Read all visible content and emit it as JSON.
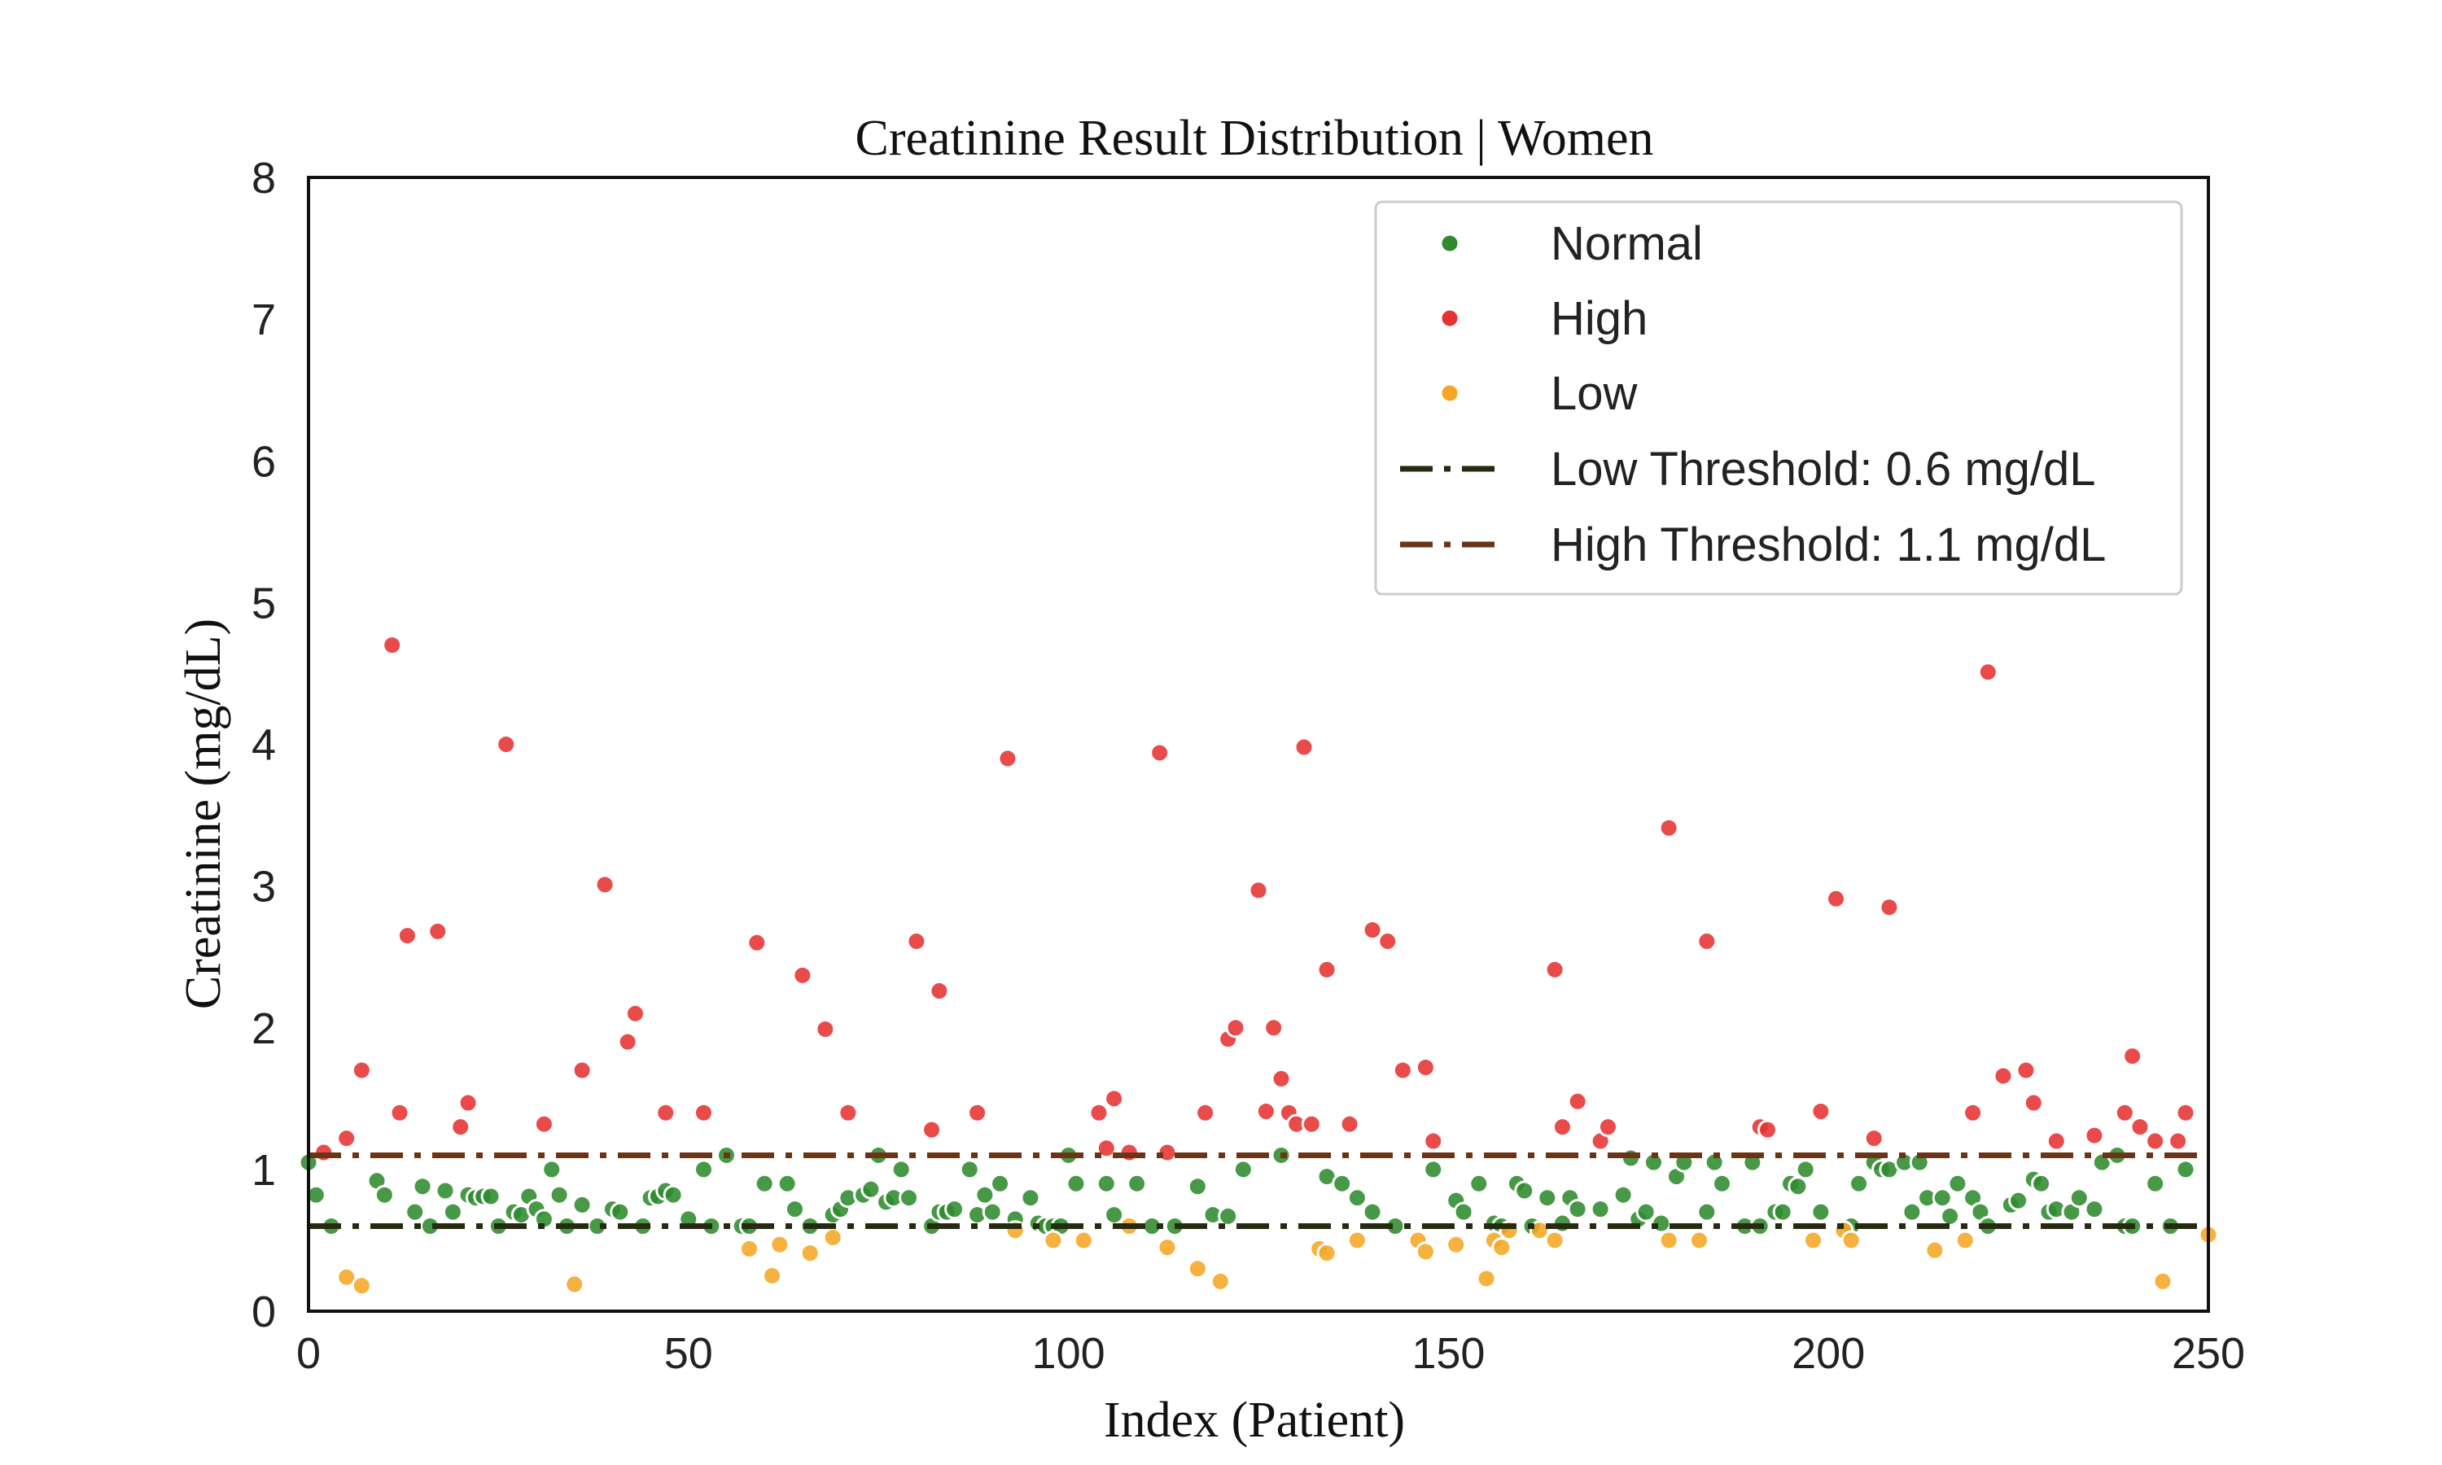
{
  "chart_data": {
    "type": "scatter",
    "title": "Creatinine Result Distribution | Women",
    "xlabel": "Index (Patient)",
    "ylabel": "Creatinine (mg/dL)",
    "xlim": [
      0,
      250
    ],
    "ylim": [
      0,
      8
    ],
    "xticks": [
      0,
      50,
      100,
      150,
      200,
      250
    ],
    "yticks": [
      0,
      1,
      2,
      3,
      4,
      5,
      6,
      7,
      8
    ],
    "grid": false,
    "legend": "top-right",
    "series": [
      {
        "name": "Normal",
        "color": "#2e8b2e",
        "x": [
          0,
          1,
          3,
          9,
          10,
          14,
          15,
          16,
          18,
          19,
          21,
          22,
          23,
          24,
          25,
          27,
          28,
          29,
          30,
          31,
          32,
          33,
          34,
          36,
          38,
          40,
          41,
          44,
          45,
          46,
          47,
          48,
          50,
          52,
          53,
          55,
          57,
          58,
          60,
          63,
          64,
          66,
          69,
          70,
          71,
          73,
          74,
          75,
          76,
          77,
          78,
          79,
          82,
          83,
          84,
          85,
          87,
          88,
          89,
          90,
          91,
          93,
          95,
          96,
          97,
          98,
          99,
          100,
          101,
          105,
          106,
          109,
          111,
          114,
          117,
          119,
          121,
          123,
          128,
          134,
          136,
          138,
          140,
          143,
          148,
          151,
          152,
          154,
          156,
          157,
          159,
          160,
          161,
          163,
          165,
          166,
          167,
          170,
          173,
          174,
          175,
          176,
          177,
          178,
          180,
          181,
          184,
          185,
          186,
          189,
          190,
          191,
          193,
          194,
          195,
          196,
          197,
          199,
          203,
          204,
          206,
          207,
          208,
          210,
          211,
          212,
          213,
          215,
          216,
          217,
          219,
          220,
          221,
          224,
          225,
          227,
          228,
          229,
          230,
          232,
          233,
          235,
          236,
          238,
          239,
          240,
          243,
          245,
          247
        ],
        "y": [
          1.05,
          0.82,
          0.6,
          0.92,
          0.82,
          0.7,
          0.88,
          0.6,
          0.85,
          0.7,
          0.82,
          0.8,
          0.81,
          0.81,
          0.6,
          0.7,
          0.68,
          0.81,
          0.72,
          0.65,
          1.0,
          0.82,
          0.6,
          0.75,
          0.6,
          0.72,
          0.7,
          0.6,
          0.8,
          0.81,
          0.85,
          0.82,
          0.65,
          1.0,
          0.6,
          1.1,
          0.6,
          0.6,
          0.9,
          0.9,
          0.72,
          0.6,
          0.68,
          0.72,
          0.8,
          0.82,
          0.86,
          1.1,
          0.77,
          0.8,
          1.0,
          0.8,
          0.6,
          0.7,
          0.7,
          0.72,
          1.0,
          0.68,
          0.82,
          0.7,
          0.9,
          0.65,
          0.8,
          0.62,
          0.6,
          0.6,
          0.6,
          1.1,
          0.9,
          0.9,
          0.68,
          0.9,
          0.6,
          0.6,
          0.88,
          0.68,
          0.67,
          1.0,
          1.1,
          0.95,
          0.9,
          0.8,
          0.7,
          0.6,
          1.0,
          0.78,
          0.7,
          0.9,
          0.62,
          0.6,
          0.9,
          0.85,
          0.6,
          0.8,
          0.62,
          0.8,
          0.72,
          0.72,
          0.82,
          1.08,
          0.65,
          0.7,
          1.05,
          0.62,
          0.95,
          1.05,
          0.7,
          1.05,
          0.9,
          0.6,
          1.05,
          0.6,
          0.7,
          0.7,
          0.9,
          0.88,
          1.0,
          0.7,
          0.6,
          0.9,
          1.05,
          1.0,
          1.0,
          1.05,
          0.7,
          1.05,
          0.8,
          0.8,
          0.67,
          0.9,
          0.8,
          0.7,
          0.6,
          0.75,
          0.78,
          0.93,
          0.9,
          0.7,
          0.72,
          0.7,
          0.8,
          0.72,
          1.05,
          1.1,
          0.6,
          0.6,
          0.9,
          0.6,
          1.0
        ]
      },
      {
        "name": "High",
        "color": "#e63232",
        "x": [
          2,
          5,
          7,
          11,
          12,
          13,
          17,
          20,
          21,
          26,
          31,
          36,
          39,
          42,
          43,
          47,
          52,
          59,
          65,
          68,
          71,
          80,
          82,
          83,
          88,
          92,
          104,
          105,
          106,
          108,
          112,
          113,
          118,
          121,
          122,
          125,
          126,
          127,
          128,
          129,
          130,
          131,
          132,
          134,
          137,
          140,
          142,
          144,
          147,
          148,
          164,
          165,
          167,
          170,
          171,
          179,
          184,
          191,
          192,
          199,
          201,
          206,
          208,
          219,
          221,
          223,
          226,
          227,
          230,
          235,
          239,
          240,
          241,
          243,
          246,
          247
        ],
        "y": [
          1.12,
          1.22,
          1.7,
          4.7,
          1.4,
          2.65,
          2.68,
          1.3,
          1.47,
          4.0,
          1.32,
          1.7,
          3.01,
          1.9,
          2.1,
          1.4,
          1.4,
          2.6,
          2.37,
          1.99,
          1.4,
          2.61,
          1.28,
          2.26,
          1.4,
          3.9,
          1.4,
          1.15,
          1.5,
          1.12,
          3.94,
          1.12,
          1.4,
          1.92,
          2.0,
          2.97,
          1.41,
          2.0,
          1.64,
          1.4,
          1.32,
          3.98,
          1.32,
          2.41,
          1.32,
          2.69,
          2.61,
          1.7,
          1.72,
          1.2,
          2.41,
          1.3,
          1.48,
          1.2,
          1.3,
          3.41,
          2.61,
          1.3,
          1.28,
          1.41,
          2.91,
          1.22,
          2.85,
          1.4,
          4.51,
          1.66,
          1.7,
          1.47,
          1.2,
          1.24,
          1.4,
          1.8,
          1.3,
          1.2,
          1.2,
          1.4
        ]
      },
      {
        "name": "Low",
        "color": "#f5a623",
        "x": [
          5,
          7,
          35,
          58,
          61,
          62,
          66,
          69,
          93,
          98,
          102,
          108,
          113,
          117,
          120,
          133,
          134,
          138,
          146,
          147,
          151,
          155,
          156,
          157,
          158,
          162,
          164,
          179,
          183,
          198,
          202,
          203,
          214,
          218,
          244,
          250
        ],
        "y": [
          0.24,
          0.18,
          0.19,
          0.44,
          0.25,
          0.47,
          0.41,
          0.52,
          0.57,
          0.5,
          0.5,
          0.6,
          0.45,
          0.3,
          0.21,
          0.44,
          0.41,
          0.5,
          0.5,
          0.42,
          0.47,
          0.23,
          0.5,
          0.45,
          0.57,
          0.57,
          0.5,
          0.5,
          0.5,
          0.5,
          0.57,
          0.5,
          0.43,
          0.5,
          0.21,
          0.54
        ]
      }
    ],
    "thresholds": [
      {
        "name": "Low Threshold: 0.6 mg/dL",
        "value": 0.6,
        "color": "#262a10"
      },
      {
        "name": "High Threshold: 1.1 mg/dL",
        "value": 1.1,
        "color": "#6b3416"
      }
    ]
  }
}
